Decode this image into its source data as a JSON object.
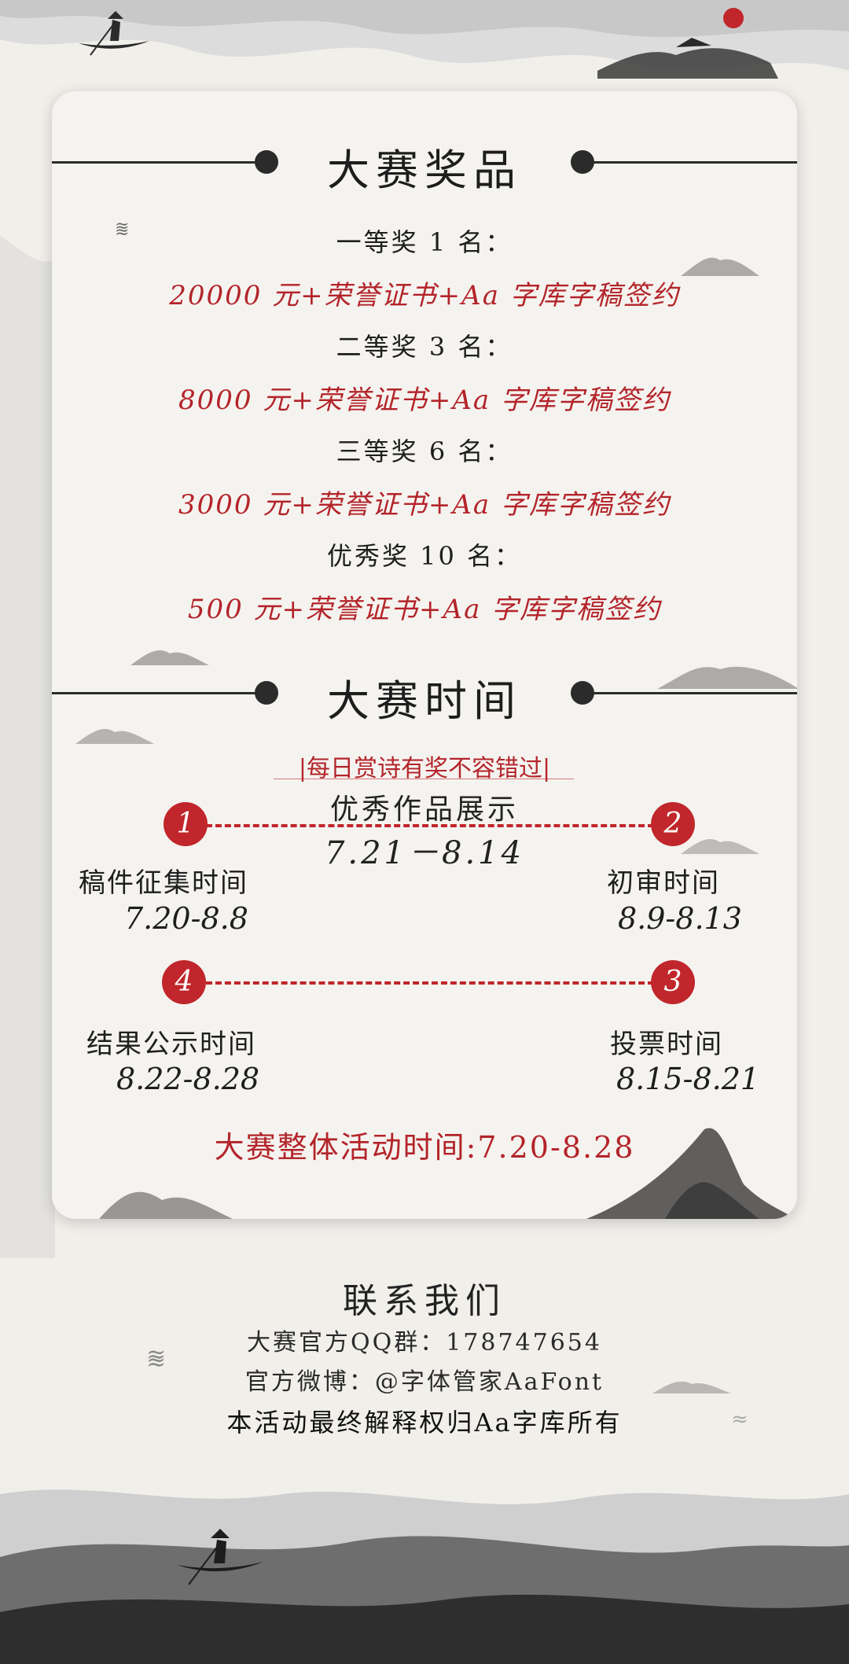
{
  "prizes": {
    "title": "大赛奖品",
    "items": [
      {
        "label": "一等奖 1 名：",
        "value": "20000 元+荣誉证书+Aa 字库字稿签约"
      },
      {
        "label": "二等奖 3 名：",
        "value": "8000 元+荣誉证书+Aa 字库字稿签约"
      },
      {
        "label": "三等奖 6 名：",
        "value": "3000 元+荣誉证书+Aa 字库字稿签约"
      },
      {
        "label": "优秀奖 10 名：",
        "value": "500 元+荣誉证书+Aa 字库字稿签约"
      }
    ]
  },
  "timeline": {
    "title": "大赛时间",
    "tagline": "|每日赏诗有奖不容错过|",
    "showcase_label": "优秀作品展示",
    "showcase_date": "7.21－8.14",
    "steps": [
      {
        "num": "1",
        "name": "稿件征集时间",
        "date": "7.20-8.8"
      },
      {
        "num": "2",
        "name": "初审时间",
        "date": "8.9-8.13"
      },
      {
        "num": "3",
        "name": "投票时间",
        "date": "8.15-8.21"
      },
      {
        "num": "4",
        "name": "结果公示时间",
        "date": "8.22-8.28"
      }
    ],
    "overall": "大赛整体活动时间:7.20-8.28"
  },
  "contact": {
    "title": "联系我们",
    "qq": "大赛官方QQ群：178747654",
    "weibo": "官方微博：@字体管家AaFont",
    "rights": "本活动最终解释权归Aa字库所有"
  },
  "colors": {
    "accent": "#c0262b",
    "ink": "#2b2b2b",
    "paper": "#f5f3ef"
  }
}
